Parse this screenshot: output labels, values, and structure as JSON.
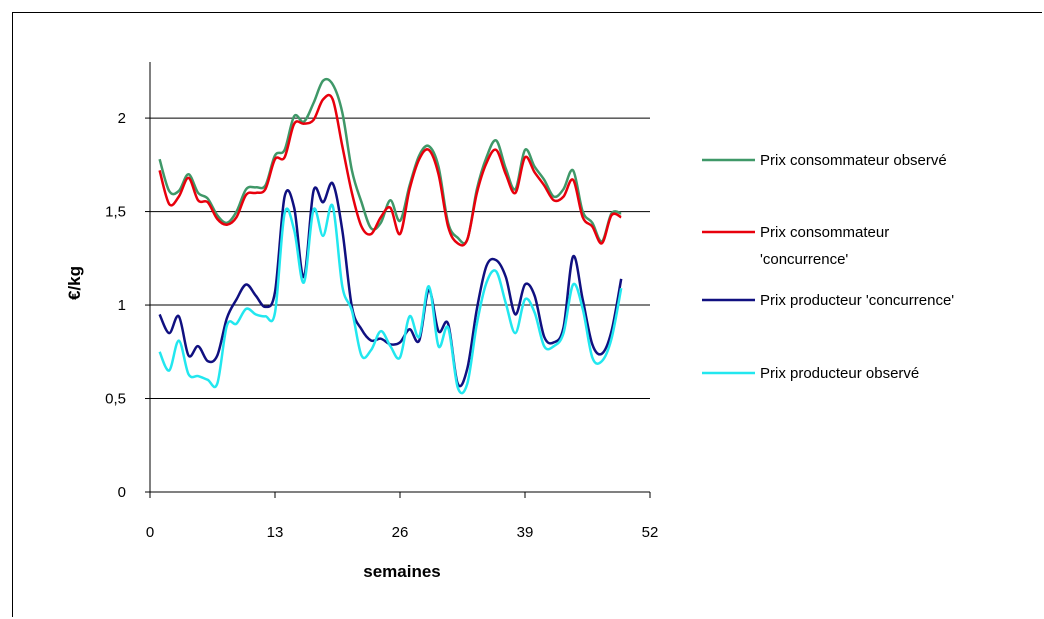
{
  "chart_data": {
    "type": "line",
    "title": "",
    "xlabel": "semaines",
    "ylabel": "€/kg",
    "xlim": [
      0,
      52
    ],
    "ylim": [
      0,
      2.3
    ],
    "x_ticks": [
      0,
      13,
      26,
      39,
      52
    ],
    "x_tick_labels": [
      "0",
      "13",
      "26",
      "39",
      "52"
    ],
    "y_ticks": [
      0,
      0.5,
      1,
      1.5,
      2
    ],
    "y_tick_labels": [
      "0",
      "0,5",
      "1",
      "1,5",
      "2"
    ],
    "grid": "horizontal",
    "legend_position": "right",
    "x": [
      1,
      2,
      3,
      4,
      5,
      6,
      7,
      8,
      9,
      10,
      11,
      12,
      13,
      14,
      15,
      16,
      17,
      18,
      19,
      20,
      21,
      22,
      23,
      24,
      25,
      26,
      27,
      28,
      29,
      30,
      31,
      32,
      33,
      34,
      35,
      36,
      37,
      38,
      39,
      40,
      41,
      42,
      43,
      44,
      45,
      46,
      47,
      48,
      49
    ],
    "series": [
      {
        "name": "Prix consommateur observé",
        "color": "#3f9868",
        "values": [
          1.78,
          1.61,
          1.61,
          1.7,
          1.6,
          1.57,
          1.48,
          1.44,
          1.5,
          1.62,
          1.63,
          1.64,
          1.8,
          1.83,
          2.01,
          1.98,
          2.08,
          2.2,
          2.18,
          2.03,
          1.72,
          1.55,
          1.41,
          1.44,
          1.56,
          1.45,
          1.64,
          1.8,
          1.85,
          1.74,
          1.44,
          1.36,
          1.35,
          1.62,
          1.79,
          1.88,
          1.73,
          1.62,
          1.83,
          1.74,
          1.67,
          1.58,
          1.62,
          1.72,
          1.5,
          1.44,
          1.34,
          1.49,
          1.49
        ]
      },
      {
        "name": "Prix consommateur 'concurrence'",
        "color": "#e8000c",
        "values": [
          1.72,
          1.54,
          1.58,
          1.68,
          1.56,
          1.55,
          1.46,
          1.43,
          1.47,
          1.59,
          1.6,
          1.62,
          1.78,
          1.79,
          1.97,
          1.97,
          1.99,
          2.1,
          2.1,
          1.85,
          1.6,
          1.42,
          1.38,
          1.47,
          1.52,
          1.38,
          1.62,
          1.78,
          1.83,
          1.7,
          1.42,
          1.33,
          1.35,
          1.6,
          1.76,
          1.83,
          1.7,
          1.6,
          1.79,
          1.71,
          1.64,
          1.56,
          1.58,
          1.67,
          1.47,
          1.42,
          1.33,
          1.48,
          1.47
        ]
      },
      {
        "name": "Prix producteur 'concurrence'",
        "color": "#101080",
        "values": [
          0.95,
          0.85,
          0.94,
          0.73,
          0.78,
          0.7,
          0.73,
          0.93,
          1.03,
          1.11,
          1.05,
          0.99,
          1.07,
          1.58,
          1.52,
          1.15,
          1.61,
          1.55,
          1.65,
          1.4,
          0.99,
          0.87,
          0.81,
          0.82,
          0.79,
          0.8,
          0.87,
          0.81,
          1.08,
          0.86,
          0.9,
          0.58,
          0.66,
          0.98,
          1.21,
          1.24,
          1.15,
          0.95,
          1.11,
          1.05,
          0.83,
          0.8,
          0.88,
          1.26,
          1.03,
          0.79,
          0.74,
          0.86,
          1.14
        ]
      },
      {
        "name": "Prix producteur observé",
        "color": "#22e7ef",
        "values": [
          0.75,
          0.65,
          0.81,
          0.63,
          0.62,
          0.6,
          0.58,
          0.89,
          0.9,
          0.98,
          0.95,
          0.94,
          0.96,
          1.49,
          1.4,
          1.12,
          1.51,
          1.37,
          1.53,
          1.1,
          0.97,
          0.73,
          0.76,
          0.86,
          0.78,
          0.72,
          0.94,
          0.83,
          1.1,
          0.78,
          0.88,
          0.56,
          0.58,
          0.9,
          1.12,
          1.18,
          1.01,
          0.85,
          1.03,
          0.96,
          0.78,
          0.78,
          0.85,
          1.11,
          0.98,
          0.72,
          0.7,
          0.82,
          1.09
        ]
      }
    ]
  }
}
